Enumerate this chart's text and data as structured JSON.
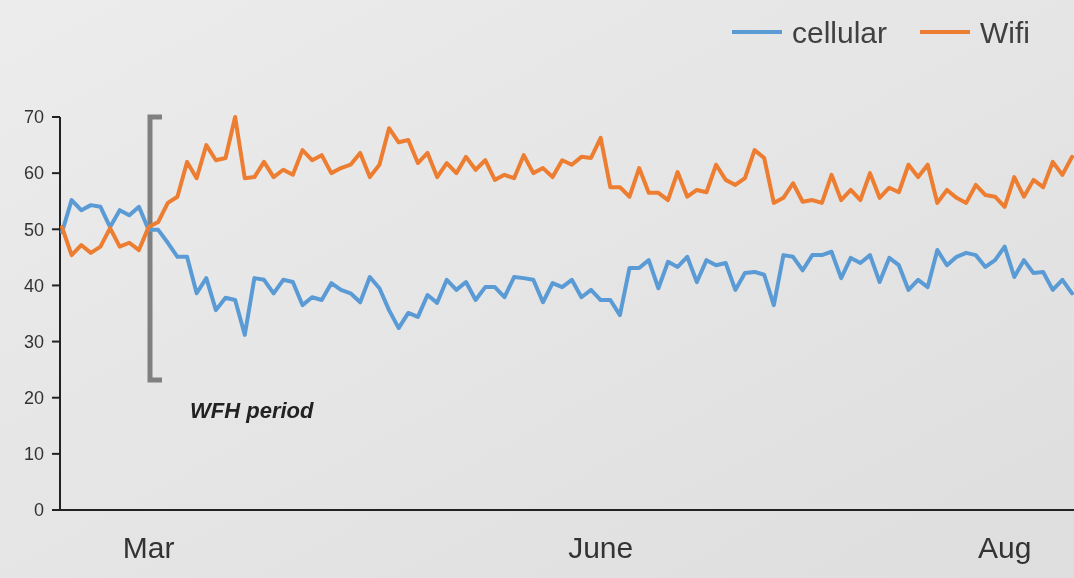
{
  "chart_data": {
    "type": "line",
    "categories": [
      null,
      null,
      null,
      null,
      null,
      null,
      null,
      null,
      null,
      "Mar",
      null,
      null,
      null,
      null,
      null,
      null,
      null,
      null,
      null,
      null,
      null,
      null,
      null,
      null,
      null,
      null,
      null,
      null,
      null,
      null,
      null,
      null,
      null,
      null,
      null,
      null,
      null,
      null,
      null,
      null,
      null,
      null,
      null,
      null,
      null,
      null,
      null,
      null,
      null,
      null,
      null,
      null,
      null,
      null,
      null,
      null,
      "June",
      null,
      null,
      null,
      null,
      null,
      null,
      null,
      null,
      null,
      null,
      null,
      null,
      null,
      null,
      null,
      null,
      null,
      null,
      null,
      null,
      null,
      null,
      null,
      null,
      null,
      null,
      null,
      null,
      null,
      null,
      null,
      null,
      null,
      null,
      null,
      null,
      null,
      null,
      null,
      null,
      null,
      "Aug",
      null,
      null,
      null,
      null,
      null,
      null,
      null
    ],
    "ylim": [
      0,
      70
    ],
    "yticks": [
      0,
      10,
      20,
      30,
      40,
      50,
      60,
      70
    ],
    "grid": false,
    "legend": "top right",
    "marker": "none",
    "line_style": "solid",
    "annotations": [
      "WFH period"
    ],
    "series": [
      {
        "name": "cellular",
        "color": "#5b9bd5",
        "values": [
          49.5,
          55.2,
          53.4,
          54.3,
          54,
          50.4,
          53.4,
          52.5,
          54,
          49.9,
          49.9,
          47.6,
          45.1,
          45.1,
          38.6,
          41.3,
          35.6,
          37.8,
          37.4,
          31.2,
          41.3,
          41,
          38.6,
          41,
          40.6,
          36.5,
          37.9,
          37.4,
          40.4,
          39.2,
          38.6,
          37,
          41.5,
          39.5,
          35.6,
          32.4,
          35.1,
          34.4,
          38.3,
          36.9,
          41,
          39.2,
          40.6,
          37.4,
          39.7,
          39.7,
          37.9,
          41.5,
          41.3,
          41,
          37,
          40.4,
          39.7,
          41,
          37.9,
          39.2,
          37.4,
          37.4,
          34.7,
          43.1,
          43.1,
          44.5,
          39.5,
          44.2,
          43.3,
          45.1,
          40.6,
          44.5,
          43.6,
          44,
          39.2,
          42.2,
          42.4,
          41.9,
          36.5,
          45.4,
          45.1,
          42.7,
          45.4,
          45.4,
          46,
          41.3,
          44.9,
          44,
          45.4,
          40.6,
          44.9,
          43.6,
          39.2,
          41,
          39.7,
          46.3,
          43.6,
          45.1,
          45.8,
          45.4,
          43.3,
          44.5,
          46.9,
          41.5,
          44.5,
          42.2,
          42.4,
          39.2,
          41,
          38.6
        ]
      },
      {
        "name": "Wifi",
        "color": "#ed7d31",
        "values": [
          50.4,
          45.4,
          47.2,
          45.8,
          46.9,
          50.2,
          46.9,
          47.6,
          46.3,
          50.4,
          51.3,
          54.7,
          55.8,
          62,
          59.1,
          65,
          62.3,
          62.7,
          70,
          59.1,
          59.3,
          62,
          59.3,
          60.6,
          59.7,
          64.1,
          62.3,
          63.2,
          60,
          60.9,
          61.5,
          63.6,
          59.3,
          61.5,
          68,
          65.5,
          65.9,
          61.8,
          63.6,
          59.3,
          61.8,
          60,
          62.9,
          60.6,
          62.3,
          58.8,
          59.7,
          59.1,
          63.2,
          60,
          60.9,
          59.3,
          62.3,
          61.5,
          62.9,
          62.7,
          66.3,
          57.5,
          57.5,
          55.8,
          60.9,
          56.5,
          56.5,
          55.2,
          60.2,
          55.8,
          57,
          56.6,
          61.5,
          58.8,
          57.9,
          59.1,
          64.1,
          62.7,
          54.7,
          55.6,
          58.2,
          54.9,
          55.2,
          54.7,
          59.7,
          55.2,
          57,
          55.2,
          60,
          55.6,
          57.4,
          56.6,
          61.5,
          59.3,
          61.5,
          54.7,
          57,
          55.6,
          54.7,
          57.9,
          56.1,
          55.8,
          54,
          59.3,
          55.8,
          58.8,
          57.5,
          62,
          59.7,
          62.9
        ]
      }
    ]
  }
}
